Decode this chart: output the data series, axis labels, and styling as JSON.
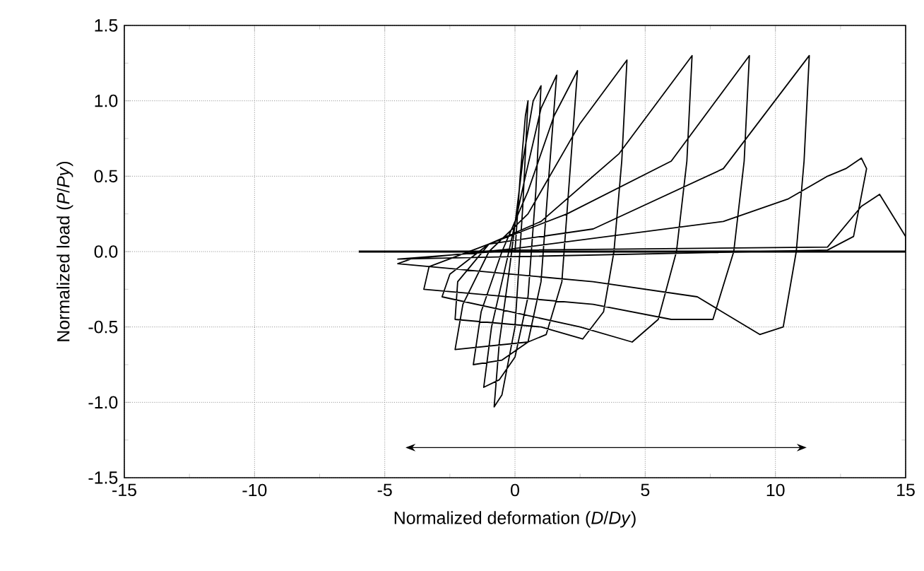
{
  "chart_data": {
    "type": "line",
    "xlabel": "Normalized deformation (*D*/*Dy*)",
    "ylabel": "Normalized load (*P*/*Py*)",
    "xlim": [
      -15,
      15
    ],
    "ylim": [
      -1.5,
      1.5
    ],
    "xticks": [
      -15,
      -10,
      -5,
      0,
      5,
      10,
      15
    ],
    "yticks": [
      {
        "value": -1.5,
        "label": "-1.5"
      },
      {
        "value": -1.0,
        "label": "-1.0"
      },
      {
        "value": -0.5,
        "label": "-0.5"
      },
      {
        "value": 0,
        "label": "0.0"
      },
      {
        "value": 0.5,
        "label": "0.5"
      },
      {
        "value": 1.0,
        "label": "1.0"
      },
      {
        "value": 1.5,
        "label": "1.5"
      }
    ],
    "grid": true,
    "marker": "none",
    "line_style": "solid",
    "series": [
      {
        "color": "#000000",
        "x": [
          0,
          0.2,
          0.4,
          0.5,
          0.3,
          0.0,
          -0.5,
          -0.8,
          -0.6,
          -0.2,
          0.3,
          0.7,
          1.0,
          0.8,
          0.5,
          0.0,
          -0.6,
          -1.2,
          -0.9,
          -0.3,
          0.4,
          1.0,
          1.6,
          1.3,
          1.0,
          0.5,
          -0.5,
          -1.6,
          -1.3,
          -0.5,
          0.5,
          1.5,
          2.4,
          2.1,
          1.8,
          1.2,
          0.5,
          -2.3,
          -2.0,
          -1.0,
          0.5,
          2.5,
          4.3,
          4.1,
          3.8,
          3.4,
          2.6,
          1.0,
          -2.3,
          -2.2,
          -1.0,
          1.0,
          4.0,
          6.8,
          6.6,
          6.2,
          5.5,
          4.5,
          2.5,
          -2.8,
          -2.5,
          -1.0,
          2.0,
          6.0,
          9.0,
          8.8,
          8.4,
          7.6,
          6.0,
          3.0,
          -3.5,
          -3.3,
          -1.0,
          3.0,
          8.0,
          11.3,
          11.1,
          10.8,
          10.3,
          9.4,
          7.0,
          3.0,
          -4.5,
          -4.0,
          0.0,
          8.0,
          10.5,
          12.0,
          12.7,
          13.3,
          13.5,
          13.0,
          12.0,
          -4.5,
          0.0,
          12.0,
          13.3,
          14.0,
          15.0,
          15.0
        ],
        "values": [
          0,
          0.5,
          0.9,
          1.0,
          0.3,
          -0.5,
          -0.95,
          -1.03,
          -0.6,
          -0.1,
          0.6,
          1.0,
          1.1,
          0.4,
          -0.3,
          -0.7,
          -0.85,
          -0.9,
          -0.5,
          -0.05,
          0.5,
          0.95,
          1.17,
          0.5,
          -0.2,
          -0.6,
          -0.72,
          -0.75,
          -0.4,
          0.0,
          0.4,
          0.9,
          1.2,
          0.5,
          -0.2,
          -0.55,
          -0.6,
          -0.65,
          -0.35,
          0.0,
          0.25,
          0.85,
          1.27,
          0.6,
          0.0,
          -0.4,
          -0.58,
          -0.5,
          -0.45,
          -0.2,
          0.05,
          0.2,
          0.65,
          1.3,
          0.6,
          0.0,
          -0.45,
          -0.6,
          -0.5,
          -0.3,
          -0.15,
          0.05,
          0.25,
          0.6,
          1.3,
          0.6,
          0.0,
          -0.45,
          -0.45,
          -0.35,
          -0.25,
          -0.1,
          0.05,
          0.15,
          0.55,
          1.3,
          0.6,
          0.0,
          -0.5,
          -0.55,
          -0.3,
          -0.2,
          -0.08,
          -0.05,
          0.02,
          0.2,
          0.35,
          0.5,
          0.55,
          0.62,
          0.55,
          0.1,
          0.01,
          -0.05,
          0.01,
          0.03,
          0.3,
          0.38,
          0.1,
          0.0
        ]
      },
      {
        "color": "#000000",
        "x": [
          -6,
          15
        ],
        "values": [
          0,
          0
        ]
      }
    ]
  }
}
